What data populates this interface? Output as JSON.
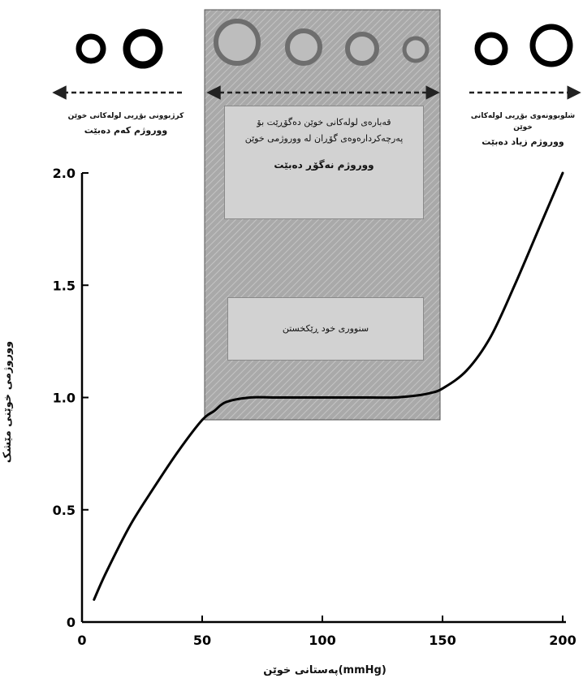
{
  "chart_data": {
    "type": "line",
    "xlim": [
      0,
      200
    ],
    "ylim": [
      0,
      2.0
    ],
    "x_ticks": [
      "0",
      "50",
      "100",
      "150",
      "200"
    ],
    "y_ticks": [
      "0",
      "0.5",
      "1.0",
      "1.5",
      "2.0"
    ],
    "xlabel": "پەستانی خوێن(mmHg)",
    "ylabel": "ووروژمی خوێنی مێشک",
    "series": [
      {
        "x": [
          5,
          10,
          20,
          30,
          40,
          50,
          55,
          60,
          70,
          80,
          90,
          100,
          110,
          120,
          130,
          140,
          145,
          150,
          160,
          170,
          180,
          190,
          200
        ],
        "values": [
          0.1,
          0.22,
          0.43,
          0.6,
          0.76,
          0.9,
          0.94,
          0.98,
          1.0,
          1.0,
          1.0,
          1.0,
          1.0,
          1.0,
          1.0,
          1.01,
          1.02,
          1.04,
          1.12,
          1.27,
          1.5,
          1.75,
          2.0
        ]
      }
    ],
    "shaded_region": {
      "x_range": [
        51,
        148
      ],
      "y_range": [
        0.9,
        2.75
      ]
    },
    "grid": false
  },
  "annotations": {
    "left_note": "کرژبوونی بۆڕیی لولەکانی خوێن",
    "left_title": "ووروژم کەم دەبێت",
    "right_note": "شلوبوونەوی بۆڕیی لولەکانی خوێن",
    "right_title": "ووروژم زیاد دەبێت",
    "center_box_text": "قەبارەی لولەکانی خوێن دەگۆڕێت بۆ پەرچەکردارەوەی گۆڕان لە ووروژمی خوێن",
    "center_box_title": "ووروژم نەگۆڕ دەبێت",
    "autoregulation_text": "سنووری خود ڕێکخستن"
  },
  "colors": {
    "axis": "#000000",
    "curve": "#000000",
    "shade": "#a8a8a8",
    "arrow": "#222222"
  },
  "icons": {
    "left": [
      "vessel-ring-icon",
      "vessel-ring-icon"
    ],
    "center": [
      "vessel-ring-icon",
      "vessel-ring-icon",
      "vessel-ring-icon",
      "vessel-ring-icon"
    ],
    "right": [
      "vessel-ring-icon",
      "vessel-ring-icon"
    ]
  }
}
